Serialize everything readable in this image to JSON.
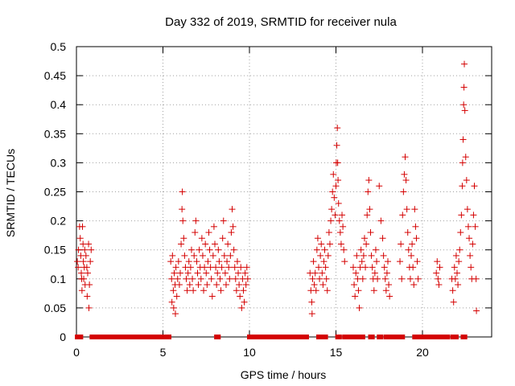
{
  "chart_data": {
    "type": "scatter",
    "title": "Day 332 of 2019, SRMTID for receiver nula",
    "xlabel": "GPS time / hours",
    "ylabel": "SRMTID / TECUs",
    "xlim": [
      0,
      24
    ],
    "ylim": [
      0,
      0.5
    ],
    "x_ticks": [
      0,
      5,
      10,
      15,
      20
    ],
    "x_tick_labels": [
      "0",
      "5",
      "10",
      "15",
      "20"
    ],
    "y_ticks": [
      0,
      0.05,
      0.1,
      0.15,
      0.2,
      0.25,
      0.3,
      0.35,
      0.4,
      0.45,
      0.5
    ],
    "y_tick_labels": [
      "0",
      "0.05",
      "0.1",
      "0.15",
      "0.2",
      "0.25",
      "0.3",
      "0.35",
      "0.4",
      "0.45",
      "0.5"
    ],
    "grid": true,
    "marker": "plus",
    "series_color": "#d40000",
    "series": [
      {
        "name": "SRMTID",
        "points": [
          [
            0.05,
            0.13
          ],
          [
            0.1,
            0.12
          ],
          [
            0.12,
            0.15
          ],
          [
            0.18,
            0.19
          ],
          [
            0.22,
            0.17
          ],
          [
            0.25,
            0.14
          ],
          [
            0.28,
            0.11
          ],
          [
            0.3,
            0.1
          ],
          [
            0.32,
            0.08
          ],
          [
            0.35,
            0.19
          ],
          [
            0.38,
            0.16
          ],
          [
            0.4,
            0.13
          ],
          [
            0.42,
            0.1
          ],
          [
            0.45,
            0.12
          ],
          [
            0.48,
            0.15
          ],
          [
            0.5,
            0.09
          ],
          [
            0.55,
            0.14
          ],
          [
            0.6,
            0.12
          ],
          [
            0.62,
            0.07
          ],
          [
            0.65,
            0.11
          ],
          [
            0.7,
            0.16
          ],
          [
            0.72,
            0.05
          ],
          [
            0.75,
            0.09
          ],
          [
            0.8,
            0.13
          ],
          [
            0.85,
            0.15
          ],
          [
            5.45,
            0.13
          ],
          [
            5.5,
            0.1
          ],
          [
            5.52,
            0.06
          ],
          [
            5.55,
            0.14
          ],
          [
            5.6,
            0.08
          ],
          [
            5.62,
            0.05
          ],
          [
            5.65,
            0.11
          ],
          [
            5.7,
            0.09
          ],
          [
            5.72,
            0.04
          ],
          [
            5.75,
            0.12
          ],
          [
            5.8,
            0.07
          ],
          [
            5.85,
            0.1
          ],
          [
            5.9,
            0.13
          ],
          [
            5.95,
            0.09
          ],
          [
            6.0,
            0.11
          ],
          [
            6.05,
            0.16
          ],
          [
            6.1,
            0.22
          ],
          [
            6.12,
            0.25
          ],
          [
            6.15,
            0.2
          ],
          [
            6.2,
            0.17
          ],
          [
            6.25,
            0.14
          ],
          [
            6.3,
            0.12
          ],
          [
            6.35,
            0.1
          ],
          [
            6.4,
            0.08
          ],
          [
            6.45,
            0.11
          ],
          [
            6.5,
            0.13
          ],
          [
            6.55,
            0.09
          ],
          [
            6.6,
            0.12
          ],
          [
            6.65,
            0.15
          ],
          [
            6.7,
            0.1
          ],
          [
            6.75,
            0.08
          ],
          [
            6.8,
            0.14
          ],
          [
            6.85,
            0.18
          ],
          [
            6.9,
            0.2
          ],
          [
            6.95,
            0.13
          ],
          [
            7.0,
            0.11
          ],
          [
            7.05,
            0.09
          ],
          [
            7.1,
            0.15
          ],
          [
            7.15,
            0.12
          ],
          [
            7.2,
            0.1
          ],
          [
            7.25,
            0.17
          ],
          [
            7.3,
            0.14
          ],
          [
            7.35,
            0.08
          ],
          [
            7.4,
            0.12
          ],
          [
            7.45,
            0.16
          ],
          [
            7.5,
            0.11
          ],
          [
            7.55,
            0.09
          ],
          [
            7.6,
            0.13
          ],
          [
            7.65,
            0.18
          ],
          [
            7.7,
            0.15
          ],
          [
            7.75,
            0.12
          ],
          [
            7.8,
            0.1
          ],
          [
            7.85,
            0.07
          ],
          [
            7.9,
            0.14
          ],
          [
            7.95,
            0.19
          ],
          [
            8.0,
            0.16
          ],
          [
            8.05,
            0.12
          ],
          [
            8.1,
            0.09
          ],
          [
            8.15,
            0.11
          ],
          [
            8.2,
            0.15
          ],
          [
            8.25,
            0.13
          ],
          [
            8.3,
            0.1
          ],
          [
            8.35,
            0.08
          ],
          [
            8.4,
            0.12
          ],
          [
            8.45,
            0.17
          ],
          [
            8.5,
            0.2
          ],
          [
            8.55,
            0.14
          ],
          [
            8.6,
            0.11
          ],
          [
            8.65,
            0.09
          ],
          [
            8.7,
            0.13
          ],
          [
            8.75,
            0.16
          ],
          [
            8.8,
            0.12
          ],
          [
            8.85,
            0.1
          ],
          [
            8.9,
            0.14
          ],
          [
            8.95,
            0.18
          ],
          [
            9.0,
            0.22
          ],
          [
            9.05,
            0.19
          ],
          [
            9.1,
            0.15
          ],
          [
            9.15,
            0.12
          ],
          [
            9.2,
            0.1
          ],
          [
            9.25,
            0.08
          ],
          [
            9.3,
            0.13
          ],
          [
            9.35,
            0.11
          ],
          [
            9.4,
            0.09
          ],
          [
            9.45,
            0.07
          ],
          [
            9.5,
            0.12
          ],
          [
            9.55,
            0.05
          ],
          [
            9.6,
            0.1
          ],
          [
            9.65,
            0.08
          ],
          [
            9.7,
            0.06
          ],
          [
            9.75,
            0.11
          ],
          [
            9.8,
            0.09
          ],
          [
            9.85,
            0.12
          ],
          [
            9.9,
            0.1
          ],
          [
            13.5,
            0.11
          ],
          [
            13.55,
            0.08
          ],
          [
            13.6,
            0.06
          ],
          [
            13.62,
            0.04
          ],
          [
            13.65,
            0.1
          ],
          [
            13.7,
            0.13
          ],
          [
            13.75,
            0.09
          ],
          [
            13.8,
            0.11
          ],
          [
            13.85,
            0.08
          ],
          [
            13.9,
            0.15
          ],
          [
            13.95,
            0.17
          ],
          [
            14.0,
            0.12
          ],
          [
            14.05,
            0.1
          ],
          [
            14.1,
            0.14
          ],
          [
            14.15,
            0.16
          ],
          [
            14.2,
            0.11
          ],
          [
            14.25,
            0.09
          ],
          [
            14.3,
            0.13
          ],
          [
            14.35,
            0.15
          ],
          [
            14.4,
            0.12
          ],
          [
            14.45,
            0.1
          ],
          [
            14.5,
            0.08
          ],
          [
            14.55,
            0.14
          ],
          [
            14.6,
            0.18
          ],
          [
            14.65,
            0.16
          ],
          [
            14.7,
            0.2
          ],
          [
            14.75,
            0.22
          ],
          [
            14.8,
            0.25
          ],
          [
            14.85,
            0.28
          ],
          [
            14.9,
            0.24
          ],
          [
            14.95,
            0.21
          ],
          [
            15.0,
            0.26
          ],
          [
            15.02,
            0.3
          ],
          [
            15.05,
            0.33
          ],
          [
            15.08,
            0.36
          ],
          [
            15.1,
            0.3
          ],
          [
            15.12,
            0.27
          ],
          [
            15.15,
            0.23
          ],
          [
            15.2,
            0.2
          ],
          [
            15.25,
            0.18
          ],
          [
            15.3,
            0.16
          ],
          [
            15.35,
            0.21
          ],
          [
            15.4,
            0.19
          ],
          [
            15.45,
            0.15
          ],
          [
            15.5,
            0.13
          ],
          [
            16.0,
            0.12
          ],
          [
            16.05,
            0.09
          ],
          [
            16.1,
            0.07
          ],
          [
            16.15,
            0.11
          ],
          [
            16.2,
            0.14
          ],
          [
            16.25,
            0.1
          ],
          [
            16.3,
            0.08
          ],
          [
            16.35,
            0.05
          ],
          [
            16.4,
            0.12
          ],
          [
            16.45,
            0.15
          ],
          [
            16.5,
            0.13
          ],
          [
            16.55,
            0.1
          ],
          [
            16.6,
            0.14
          ],
          [
            16.65,
            0.17
          ],
          [
            16.7,
            0.12
          ],
          [
            16.75,
            0.16
          ],
          [
            16.8,
            0.21
          ],
          [
            16.85,
            0.25
          ],
          [
            16.9,
            0.27
          ],
          [
            16.95,
            0.22
          ],
          [
            17.0,
            0.18
          ],
          [
            17.05,
            0.14
          ],
          [
            17.1,
            0.12
          ],
          [
            17.15,
            0.1
          ],
          [
            17.2,
            0.08
          ],
          [
            17.25,
            0.11
          ],
          [
            17.3,
            0.15
          ],
          [
            17.35,
            0.13
          ],
          [
            17.4,
            0.1
          ],
          [
            17.5,
            0.26
          ],
          [
            17.6,
            0.2
          ],
          [
            17.7,
            0.17
          ],
          [
            17.75,
            0.14
          ],
          [
            17.8,
            0.12
          ],
          [
            17.85,
            0.1
          ],
          [
            17.9,
            0.08
          ],
          [
            17.95,
            0.11
          ],
          [
            18.0,
            0.13
          ],
          [
            18.05,
            0.09
          ],
          [
            18.1,
            0.07
          ],
          [
            18.7,
            0.13
          ],
          [
            18.75,
            0.16
          ],
          [
            18.8,
            0.1
          ],
          [
            18.85,
            0.21
          ],
          [
            18.9,
            0.25
          ],
          [
            18.95,
            0.28
          ],
          [
            19.0,
            0.31
          ],
          [
            19.05,
            0.27
          ],
          [
            19.1,
            0.22
          ],
          [
            19.15,
            0.18
          ],
          [
            19.2,
            0.15
          ],
          [
            19.25,
            0.12
          ],
          [
            19.3,
            0.1
          ],
          [
            19.35,
            0.14
          ],
          [
            19.4,
            0.16
          ],
          [
            19.45,
            0.12
          ],
          [
            19.5,
            0.09
          ],
          [
            19.55,
            0.22
          ],
          [
            19.6,
            0.19
          ],
          [
            19.65,
            0.17
          ],
          [
            19.7,
            0.13
          ],
          [
            19.75,
            0.1
          ],
          [
            20.8,
            0.11
          ],
          [
            20.85,
            0.13
          ],
          [
            20.9,
            0.1
          ],
          [
            20.95,
            0.09
          ],
          [
            21.0,
            0.12
          ],
          [
            21.7,
            0.1
          ],
          [
            21.75,
            0.08
          ],
          [
            21.8,
            0.06
          ],
          [
            21.85,
            0.12
          ],
          [
            21.9,
            0.1
          ],
          [
            21.95,
            0.14
          ],
          [
            22.0,
            0.11
          ],
          [
            22.05,
            0.09
          ],
          [
            22.1,
            0.13
          ],
          [
            22.15,
            0.15
          ],
          [
            22.2,
            0.18
          ],
          [
            22.25,
            0.21
          ],
          [
            22.3,
            0.26
          ],
          [
            22.32,
            0.3
          ],
          [
            22.35,
            0.34
          ],
          [
            22.38,
            0.4
          ],
          [
            22.4,
            0.43
          ],
          [
            22.42,
            0.47
          ],
          [
            22.45,
            0.39
          ],
          [
            22.5,
            0.31
          ],
          [
            22.55,
            0.27
          ],
          [
            22.6,
            0.22
          ],
          [
            22.65,
            0.19
          ],
          [
            22.7,
            0.17
          ],
          [
            22.75,
            0.14
          ],
          [
            22.8,
            0.12
          ],
          [
            22.85,
            0.1
          ],
          [
            22.9,
            0.16
          ],
          [
            22.95,
            0.21
          ],
          [
            23.0,
            0.26
          ],
          [
            23.05,
            0.19
          ],
          [
            23.1,
            0.1
          ],
          [
            23.12,
            0.045
          ]
        ],
        "zero_ranges": [
          [
            0.05,
            0.25
          ],
          [
            0.9,
            5.35
          ],
          [
            8.1,
            8.2
          ],
          [
            10.0,
            13.3
          ],
          [
            14.0,
            14.1
          ],
          [
            14.3,
            14.4
          ],
          [
            15.1,
            15.2
          ],
          [
            15.5,
            15.8
          ],
          [
            16.0,
            16.2
          ],
          [
            16.4,
            16.55
          ],
          [
            17.0,
            17.1
          ],
          [
            17.5,
            17.6
          ],
          [
            17.9,
            18.05
          ],
          [
            18.3,
            18.85
          ],
          [
            19.55,
            20.55
          ],
          [
            20.75,
            21.45
          ],
          [
            21.75,
            21.95
          ],
          [
            22.35,
            22.45
          ]
        ]
      }
    ]
  }
}
